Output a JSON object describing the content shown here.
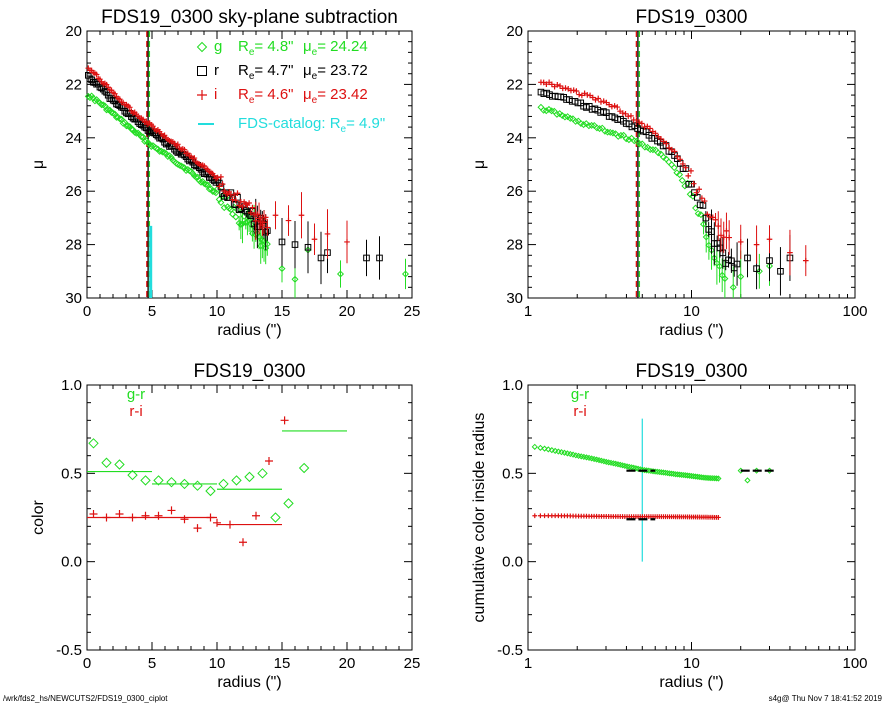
{
  "footer": {
    "left": "/wrk/fds2_hs/NEWCUTS2/FDS19_0300_ciplot",
    "right": "s4g@  Thu Nov  7 18:41:52 2019"
  },
  "colors": {
    "g": "#22dd22",
    "r": "#000000",
    "i": "#dd1111",
    "cyan": "#22dddd"
  },
  "chart_data": [
    {
      "id": "sb_linear",
      "type": "scatter",
      "title": "FDS19_0300 sky-plane subtraction",
      "xlabel": "radius (\")",
      "ylabel": "μ",
      "xscale": "linear",
      "xlim": [
        0,
        25
      ],
      "ylim": [
        30,
        20
      ],
      "xticks": [
        0,
        5,
        10,
        15,
        20,
        25
      ],
      "yticks": [
        20,
        22,
        24,
        26,
        28,
        30
      ],
      "vlines": [
        {
          "x": 4.7,
          "color": "r",
          "dash": false
        },
        {
          "x": 4.6,
          "color": "i",
          "dash": true
        },
        {
          "x": 4.8,
          "color": "g",
          "dash": true
        }
      ],
      "cyan_bar": {
        "x": 4.9,
        "from": 30,
        "to": 27.3
      },
      "legend": [
        {
          "band": "g",
          "marker": "diamond",
          "re": "4.8\"",
          "mu": "24.24",
          "color": "g"
        },
        {
          "band": "r",
          "marker": "square",
          "re": "4.7\"",
          "mu": "23.72",
          "color": "r"
        },
        {
          "band": "i",
          "marker": "plus",
          "re": "4.6\"",
          "mu": "23.42",
          "color": "i"
        }
      ],
      "legend_re": "R",
      "legend_mu": "μ",
      "legend_sub": "e",
      "catalog_text": "FDS-catalog: R",
      "catalog_value": "4.9\"",
      "series": [
        {
          "name": "g",
          "color": "g",
          "marker": "diamond",
          "profile": [
            [
              0.1,
              22.4
            ],
            [
              1,
              22.7
            ],
            [
              2,
              23.1
            ],
            [
              3,
              23.5
            ],
            [
              4,
              23.9
            ],
            [
              5,
              24.3
            ],
            [
              6,
              24.6
            ],
            [
              7,
              24.95
            ],
            [
              8,
              25.3
            ],
            [
              9,
              25.7
            ],
            [
              10,
              26.1
            ],
            [
              11,
              26.6
            ],
            [
              12,
              27.1
            ],
            [
              13,
              27.6
            ],
            [
              14,
              28.2
            ]
          ],
          "extra": [
            [
              15,
              28.9
            ],
            [
              16,
              29.3
            ],
            [
              17,
              28.2
            ],
            [
              19.5,
              29.1
            ],
            [
              24.5,
              29.1
            ]
          ]
        },
        {
          "name": "r",
          "color": "r",
          "marker": "square",
          "profile": [
            [
              0.1,
              21.7
            ],
            [
              1,
              22.1
            ],
            [
              2,
              22.6
            ],
            [
              3,
              23.0
            ],
            [
              4,
              23.45
            ],
            [
              5,
              23.8
            ],
            [
              6,
              24.15
            ],
            [
              7,
              24.5
            ],
            [
              8,
              24.85
            ],
            [
              9,
              25.3
            ],
            [
              10,
              25.7
            ],
            [
              11,
              26.2
            ],
            [
              12,
              26.6
            ],
            [
              13,
              27.1
            ],
            [
              14,
              27.5
            ]
          ],
          "extra": [
            [
              15,
              27.9
            ],
            [
              16,
              28.0
            ],
            [
              17,
              28.1
            ],
            [
              18,
              28.5
            ],
            [
              18.5,
              28.3
            ],
            [
              21.5,
              28.5
            ],
            [
              22.5,
              28.5
            ]
          ]
        },
        {
          "name": "i",
          "color": "i",
          "marker": "plus",
          "profile": [
            [
              0.1,
              21.4
            ],
            [
              1,
              21.8
            ],
            [
              2,
              22.3
            ],
            [
              3,
              22.8
            ],
            [
              4,
              23.2
            ],
            [
              5,
              23.55
            ],
            [
              6,
              23.95
            ],
            [
              7,
              24.3
            ],
            [
              8,
              24.7
            ],
            [
              9,
              25.1
            ],
            [
              10,
              25.55
            ],
            [
              11,
              26.0
            ],
            [
              12,
              26.5
            ],
            [
              13,
              26.9
            ],
            [
              14,
              27.2
            ]
          ],
          "extra": [
            [
              14.5,
              26.9
            ],
            [
              15.5,
              27.1
            ],
            [
              16.5,
              26.9
            ],
            [
              17.5,
              27.8
            ],
            [
              18.5,
              27.6
            ],
            [
              20,
              27.9
            ]
          ]
        }
      ]
    },
    {
      "id": "sb_log",
      "type": "scatter",
      "title": "FDS19_0300",
      "xlabel": "radius (\")",
      "ylabel": "μ",
      "xscale": "log",
      "xlim": [
        1,
        100
      ],
      "ylim": [
        30,
        20
      ],
      "xticks": [
        1,
        10,
        100
      ],
      "yticks": [
        20,
        22,
        24,
        26,
        28,
        30
      ],
      "vlines": [
        {
          "x": 4.7,
          "color": "r",
          "dash": false
        },
        {
          "x": 4.6,
          "color": "i",
          "dash": true
        },
        {
          "x": 4.8,
          "color": "g",
          "dash": true
        }
      ],
      "series": [
        {
          "name": "g",
          "color": "g",
          "marker": "diamond",
          "profile": [
            [
              1.2,
              22.9
            ],
            [
              2,
              23.4
            ],
            [
              3,
              23.75
            ],
            [
              4,
              24.0
            ],
            [
              5,
              24.25
            ],
            [
              6,
              24.5
            ],
            [
              7,
              24.8
            ],
            [
              8,
              25.2
            ],
            [
              9,
              25.7
            ],
            [
              10,
              26.2
            ],
            [
              11,
              26.8
            ],
            [
              12,
              27.4
            ],
            [
              13,
              28.0
            ],
            [
              14,
              28.5
            ],
            [
              15,
              29.0
            ],
            [
              16,
              29.4
            ]
          ],
          "extra": [
            [
              18,
              29.6
            ],
            [
              20,
              29.2
            ],
            [
              26,
              29.0
            ],
            [
              30,
              28.8
            ]
          ]
        },
        {
          "name": "r",
          "color": "r",
          "marker": "square",
          "profile": [
            [
              1.2,
              22.3
            ],
            [
              2,
              22.7
            ],
            [
              3,
              23.1
            ],
            [
              4,
              23.45
            ],
            [
              5,
              23.75
            ],
            [
              6,
              24.05
            ],
            [
              7,
              24.35
            ],
            [
              8,
              24.75
            ],
            [
              9,
              25.2
            ],
            [
              10,
              25.7
            ],
            [
              11,
              26.3
            ],
            [
              12,
              26.9
            ],
            [
              13,
              27.5
            ],
            [
              14,
              27.9
            ],
            [
              15,
              28.3
            ],
            [
              17,
              28.6
            ],
            [
              19,
              28.7
            ]
          ],
          "extra": [
            [
              22,
              28.5
            ],
            [
              25,
              28.9
            ],
            [
              30,
              28.6
            ],
            [
              35,
              29.0
            ],
            [
              40,
              28.5
            ]
          ]
        },
        {
          "name": "i",
          "color": "i",
          "marker": "plus",
          "profile": [
            [
              1.2,
              21.9
            ],
            [
              2,
              22.3
            ],
            [
              3,
              22.7
            ],
            [
              4,
              23.1
            ],
            [
              5,
              23.5
            ],
            [
              6,
              23.85
            ],
            [
              7,
              24.2
            ],
            [
              8,
              24.6
            ],
            [
              9,
              25.0
            ],
            [
              10,
              25.5
            ],
            [
              11,
              26.0
            ],
            [
              12,
              26.5
            ],
            [
              13,
              27.0
            ],
            [
              14,
              27.3
            ],
            [
              15,
              27.6
            ],
            [
              17,
              27.8
            ]
          ],
          "extra": [
            [
              20,
              27.9
            ],
            [
              25,
              28.0
            ],
            [
              30,
              27.8
            ],
            [
              40,
              28.3
            ],
            [
              50,
              28.6
            ]
          ]
        }
      ]
    },
    {
      "id": "color_linear",
      "type": "scatter",
      "title": "FDS19_0300",
      "xlabel": "radius (\")",
      "ylabel": "color",
      "xscale": "linear",
      "xlim": [
        0,
        25
      ],
      "ylim": [
        -0.5,
        1.0
      ],
      "xticks": [
        0,
        5,
        10,
        15,
        20,
        25
      ],
      "yticks": [
        -0.5,
        0.0,
        0.5,
        1.0
      ],
      "ytick_labels": [
        "-0.5",
        "0.0",
        "0.5",
        "1.0"
      ],
      "legend": [
        {
          "label": "g-r",
          "color": "g"
        },
        {
          "label": "r-i",
          "color": "i"
        }
      ],
      "series": [
        {
          "name": "g-r",
          "color": "g",
          "marker": "diamond",
          "points": [
            [
              0.5,
              0.67
            ],
            [
              1.5,
              0.56
            ],
            [
              2.5,
              0.55
            ],
            [
              3.5,
              0.49
            ],
            [
              4.5,
              0.46
            ],
            [
              5.5,
              0.46
            ],
            [
              6.5,
              0.45
            ],
            [
              7.5,
              0.44
            ],
            [
              8.5,
              0.43
            ],
            [
              9.5,
              0.4
            ],
            [
              10.5,
              0.44
            ],
            [
              11.5,
              0.46
            ],
            [
              12.5,
              0.48
            ],
            [
              13.5,
              0.5
            ],
            [
              14.5,
              0.25
            ],
            [
              15.5,
              0.33
            ],
            [
              16.7,
              0.53
            ]
          ],
          "segments": [
            [
              0,
              5,
              0.51
            ],
            [
              5,
              10,
              0.44
            ],
            [
              10,
              15,
              0.41
            ],
            [
              15,
              20,
              0.74
            ]
          ]
        },
        {
          "name": "r-i",
          "color": "i",
          "marker": "plus",
          "points": [
            [
              0.5,
              0.27
            ],
            [
              1.5,
              0.25
            ],
            [
              2.5,
              0.27
            ],
            [
              3.5,
              0.25
            ],
            [
              4.5,
              0.26
            ],
            [
              5.5,
              0.26
            ],
            [
              6.5,
              0.29
            ],
            [
              7.5,
              0.24
            ],
            [
              8.5,
              0.19
            ],
            [
              9.5,
              0.25
            ],
            [
              10,
              0.22
            ],
            [
              11,
              0.21
            ],
            [
              12,
              0.11
            ],
            [
              13,
              0.26
            ],
            [
              14,
              0.57
            ],
            [
              15.2,
              0.8
            ]
          ],
          "segments": [
            [
              0,
              10,
              0.25
            ],
            [
              10,
              15,
              0.21
            ]
          ]
        }
      ]
    },
    {
      "id": "color_log",
      "type": "scatter",
      "title": "FDS19_0300",
      "xlabel": "radius (\")",
      "ylabel": "cumulative color inside radius",
      "xscale": "log",
      "xlim": [
        1,
        100
      ],
      "ylim": [
        -0.5,
        1.0
      ],
      "xticks": [
        1,
        10,
        100
      ],
      "yticks": [
        -0.5,
        0.0,
        0.5,
        1.0
      ],
      "ytick_labels": [
        "-0.5",
        "0.0",
        "0.5",
        "1.0"
      ],
      "legend": [
        {
          "label": "g-r",
          "color": "g"
        },
        {
          "label": "r-i",
          "color": "i"
        }
      ],
      "vline": {
        "x": 5.0,
        "from": 0.0,
        "to": 0.81,
        "color": "cyan"
      },
      "series": [
        {
          "name": "g-r",
          "color": "g",
          "marker": "diamond",
          "curve": [
            [
              1.1,
              0.65
            ],
            [
              1.5,
              0.625
            ],
            [
              2,
              0.6
            ],
            [
              3,
              0.565
            ],
            [
              4,
              0.54
            ],
            [
              5,
              0.52
            ],
            [
              6,
              0.51
            ],
            [
              8,
              0.495
            ],
            [
              10,
              0.485
            ],
            [
              12,
              0.475
            ],
            [
              15,
              0.47
            ]
          ],
          "extra": [
            [
              20,
              0.515
            ],
            [
              22,
              0.46
            ],
            [
              25,
              0.515
            ],
            [
              30,
              0.515
            ]
          ],
          "bars": [
            [
              4,
              6,
              0.515
            ],
            [
              20,
              33,
              0.515
            ]
          ]
        },
        {
          "name": "r-i",
          "color": "i",
          "marker": "plus",
          "curve": [
            [
              1.1,
              0.26
            ],
            [
              1.5,
              0.26
            ],
            [
              2,
              0.258
            ],
            [
              3,
              0.256
            ],
            [
              4,
              0.255
            ],
            [
              5,
              0.255
            ],
            [
              6,
              0.255
            ],
            [
              8,
              0.254
            ],
            [
              10,
              0.253
            ],
            [
              12,
              0.252
            ],
            [
              15,
              0.25
            ]
          ],
          "extra": [],
          "bars": [
            [
              4,
              6,
              0.24
            ]
          ]
        }
      ]
    }
  ]
}
